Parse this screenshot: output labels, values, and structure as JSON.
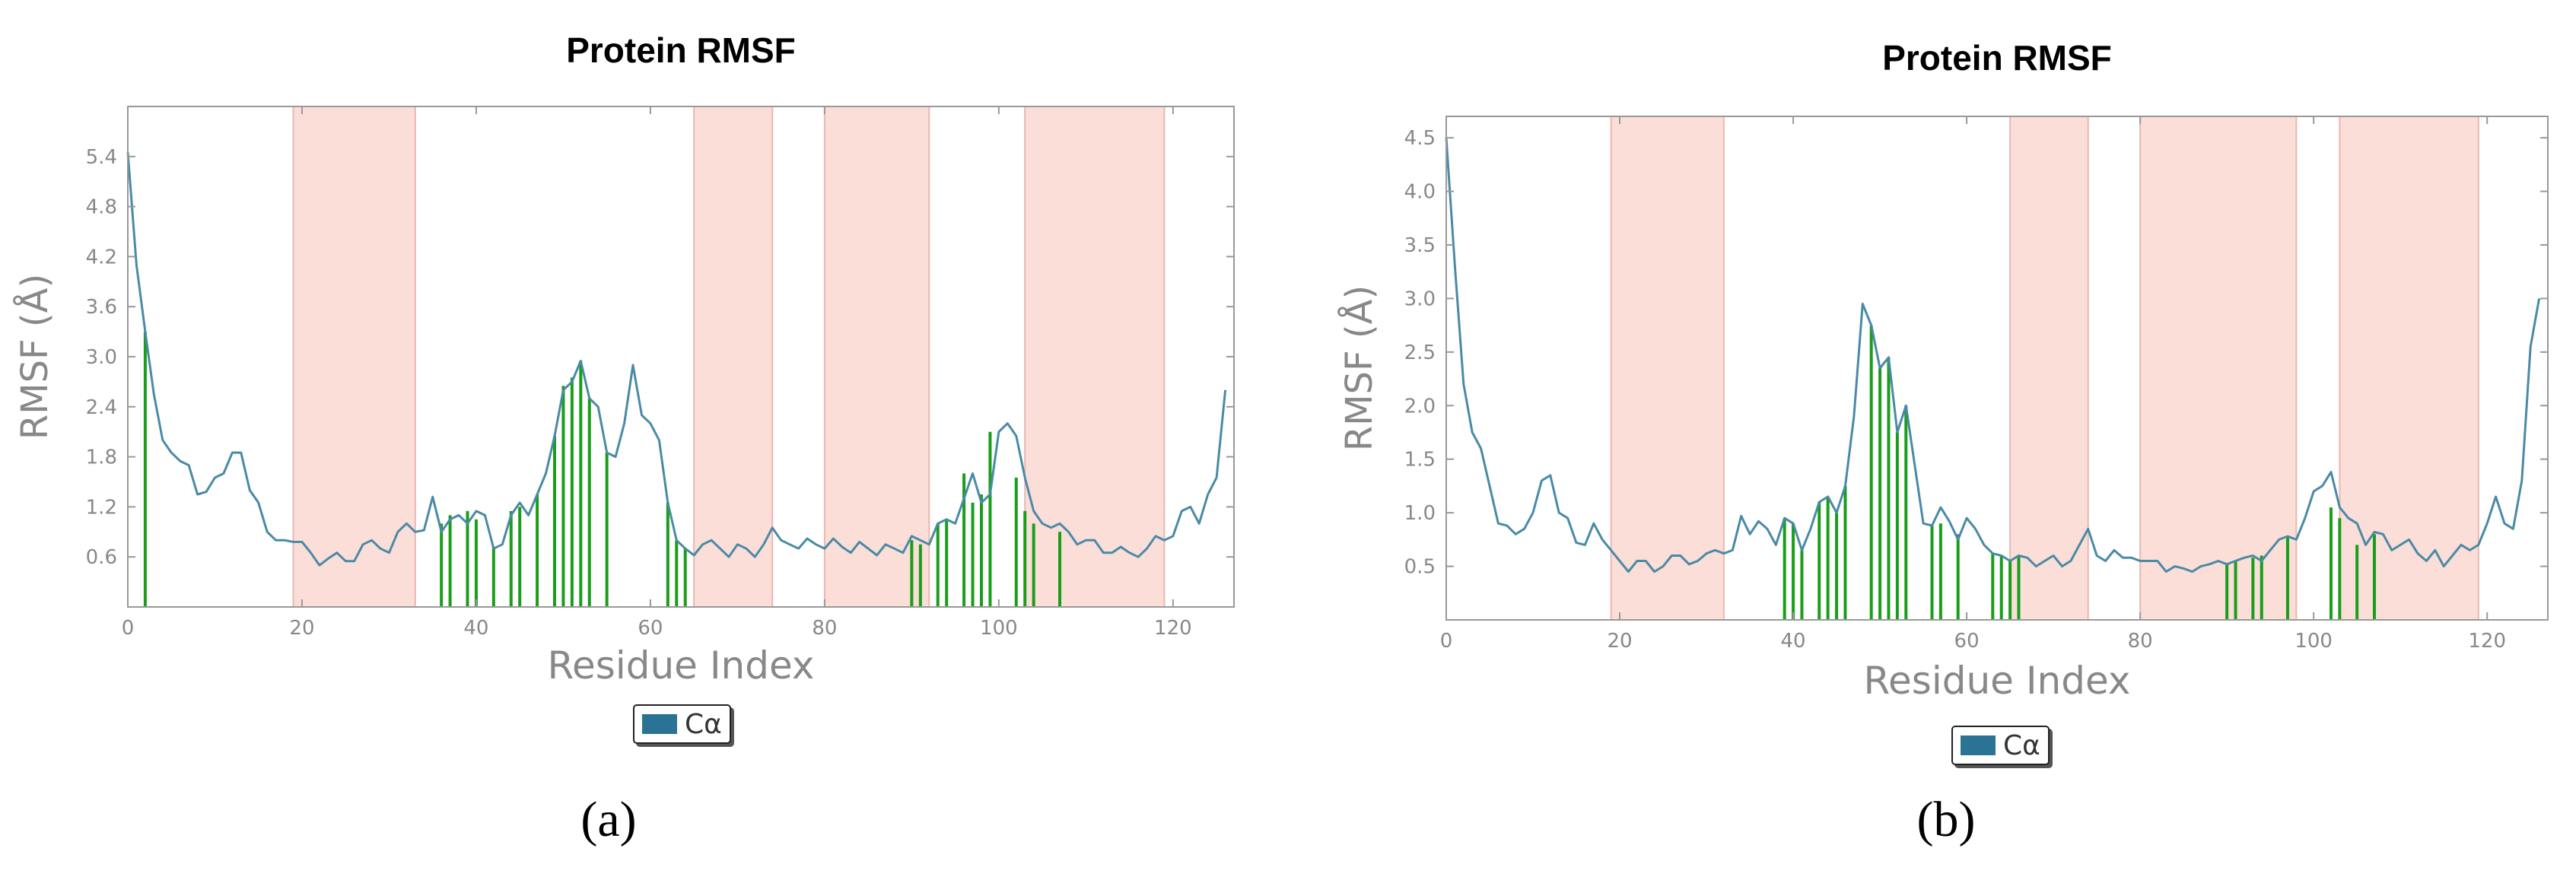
{
  "captions": [
    "(a)",
    "(b)"
  ],
  "chart_data": [
    {
      "type": "line",
      "title": "Protein RMSF",
      "xlabel": "Residue Index",
      "ylabel": "RMSF (Å)",
      "xlim": [
        0,
        127
      ],
      "ylim": [
        0,
        6.0
      ],
      "xticks": [
        0,
        20,
        40,
        60,
        80,
        100,
        120
      ],
      "yticks": [
        0.6,
        1.2,
        1.8,
        2.4,
        3.0,
        3.6,
        4.2,
        4.8,
        5.4
      ],
      "ytick_labels": [
        "0.6",
        "1.2",
        "1.8",
        "2.4",
        "3.0",
        "3.6",
        "4.2",
        "4.8",
        "5.4"
      ],
      "legend": {
        "label": "Cα",
        "color": "#2b7394",
        "placement": "below"
      },
      "colors": {
        "line": "#4a8aa6",
        "bars": "#1a9e1a",
        "shade": "#fbded8"
      },
      "shaded_regions": [
        [
          19,
          33
        ],
        [
          65,
          74
        ],
        [
          80,
          92
        ],
        [
          103,
          119
        ]
      ],
      "series": [
        {
          "name": "Cα",
          "x": [
            0,
            1,
            2,
            3,
            4,
            5,
            6,
            7,
            8,
            9,
            10,
            11,
            12,
            13,
            14,
            15,
            16,
            17,
            18,
            19,
            20,
            21,
            22,
            23,
            24,
            25,
            26,
            27,
            28,
            29,
            30,
            31,
            32,
            33,
            34,
            35,
            36,
            37,
            38,
            39,
            40,
            41,
            42,
            43,
            44,
            45,
            46,
            47,
            48,
            49,
            50,
            51,
            52,
            53,
            54,
            55,
            56,
            57,
            58,
            59,
            60,
            61,
            62,
            63,
            64,
            65,
            66,
            67,
            68,
            69,
            70,
            71,
            72,
            73,
            74,
            75,
            76,
            77,
            78,
            79,
            80,
            81,
            82,
            83,
            84,
            85,
            86,
            87,
            88,
            89,
            90,
            91,
            92,
            93,
            94,
            95,
            96,
            97,
            98,
            99,
            100,
            101,
            102,
            103,
            104,
            105,
            106,
            107,
            108,
            109,
            110,
            111,
            112,
            113,
            114,
            115,
            116,
            117,
            118,
            119,
            120,
            121,
            122,
            123,
            124,
            125,
            126
          ],
          "y": [
            5.45,
            4.1,
            3.3,
            2.55,
            2.0,
            1.85,
            1.75,
            1.7,
            1.35,
            1.38,
            1.55,
            1.6,
            1.85,
            1.85,
            1.4,
            1.25,
            0.9,
            0.8,
            0.8,
            0.78,
            0.78,
            0.65,
            0.5,
            0.58,
            0.65,
            0.55,
            0.55,
            0.75,
            0.8,
            0.7,
            0.65,
            0.9,
            1.0,
            0.9,
            0.92,
            1.32,
            0.9,
            1.05,
            1.1,
            1.0,
            1.15,
            1.1,
            0.7,
            0.75,
            1.1,
            1.25,
            1.1,
            1.35,
            1.6,
            2.05,
            2.6,
            2.7,
            2.95,
            2.5,
            2.4,
            1.85,
            1.8,
            2.2,
            2.9,
            2.3,
            2.2,
            2.0,
            1.25,
            0.8,
            0.7,
            0.62,
            0.75,
            0.8,
            0.7,
            0.6,
            0.75,
            0.7,
            0.6,
            0.75,
            0.95,
            0.8,
            0.75,
            0.7,
            0.82,
            0.75,
            0.7,
            0.82,
            0.72,
            0.65,
            0.78,
            0.7,
            0.62,
            0.75,
            0.7,
            0.65,
            0.85,
            0.8,
            0.75,
            1.0,
            1.05,
            1.0,
            1.3,
            1.6,
            1.25,
            1.35,
            2.1,
            2.2,
            2.05,
            1.55,
            1.15,
            1.0,
            0.95,
            1.0,
            0.9,
            0.75,
            0.8,
            0.8,
            0.65,
            0.65,
            0.72,
            0.65,
            0.6,
            0.7,
            0.85,
            0.8,
            0.85,
            1.15,
            1.2,
            1.0,
            1.35,
            1.55,
            2.6
          ]
        }
      ],
      "bars": [
        {
          "x": 2,
          "y": 3.3
        },
        {
          "x": 36,
          "y": 1.0
        },
        {
          "x": 37,
          "y": 1.1
        },
        {
          "x": 39,
          "y": 1.15
        },
        {
          "x": 40,
          "y": 1.05
        },
        {
          "x": 42,
          "y": 0.72
        },
        {
          "x": 44,
          "y": 1.15
        },
        {
          "x": 45,
          "y": 1.2
        },
        {
          "x": 47,
          "y": 1.35
        },
        {
          "x": 49,
          "y": 2.05
        },
        {
          "x": 50,
          "y": 2.65
        },
        {
          "x": 51,
          "y": 2.75
        },
        {
          "x": 52,
          "y": 2.95
        },
        {
          "x": 53,
          "y": 2.5
        },
        {
          "x": 55,
          "y": 1.85
        },
        {
          "x": 62,
          "y": 1.25
        },
        {
          "x": 63,
          "y": 0.8
        },
        {
          "x": 64,
          "y": 0.7
        },
        {
          "x": 90,
          "y": 0.8
        },
        {
          "x": 91,
          "y": 0.75
        },
        {
          "x": 93,
          "y": 1.0
        },
        {
          "x": 94,
          "y": 1.05
        },
        {
          "x": 96,
          "y": 1.6
        },
        {
          "x": 97,
          "y": 1.25
        },
        {
          "x": 98,
          "y": 1.35
        },
        {
          "x": 99,
          "y": 2.1
        },
        {
          "x": 102,
          "y": 1.55
        },
        {
          "x": 103,
          "y": 1.15
        },
        {
          "x": 104,
          "y": 1.0
        },
        {
          "x": 107,
          "y": 0.9
        }
      ]
    },
    {
      "type": "line",
      "title": "Protein RMSF",
      "xlabel": "Residue Index",
      "ylabel": "RMSF (Å)",
      "xlim": [
        0,
        127
      ],
      "ylim": [
        0,
        4.7
      ],
      "xticks": [
        0,
        20,
        40,
        60,
        80,
        100,
        120
      ],
      "yticks": [
        0.5,
        1.0,
        1.5,
        2.0,
        2.5,
        3.0,
        3.5,
        4.0,
        4.5
      ],
      "ytick_labels": [
        "0.5",
        "1.0",
        "1.5",
        "2.0",
        "2.5",
        "3.0",
        "3.5",
        "4.0",
        "4.5"
      ],
      "legend": {
        "label": "Cα",
        "color": "#2b7394",
        "placement": "below"
      },
      "colors": {
        "line": "#4a8aa6",
        "bars": "#1a9e1a",
        "shade": "#fbded8"
      },
      "shaded_regions": [
        [
          19,
          32
        ],
        [
          65,
          74
        ],
        [
          80,
          98
        ],
        [
          103,
          119
        ]
      ],
      "series": [
        {
          "name": "Cα",
          "x": [
            0,
            1,
            2,
            3,
            4,
            5,
            6,
            7,
            8,
            9,
            10,
            11,
            12,
            13,
            14,
            15,
            16,
            17,
            18,
            19,
            20,
            21,
            22,
            23,
            24,
            25,
            26,
            27,
            28,
            29,
            30,
            31,
            32,
            33,
            34,
            35,
            36,
            37,
            38,
            39,
            40,
            41,
            42,
            43,
            44,
            45,
            46,
            47,
            48,
            49,
            50,
            51,
            52,
            53,
            54,
            55,
            56,
            57,
            58,
            59,
            60,
            61,
            62,
            63,
            64,
            65,
            66,
            67,
            68,
            69,
            70,
            71,
            72,
            73,
            74,
            75,
            76,
            77,
            78,
            79,
            80,
            81,
            82,
            83,
            84,
            85,
            86,
            87,
            88,
            89,
            90,
            91,
            92,
            93,
            94,
            95,
            96,
            97,
            98,
            99,
            100,
            101,
            102,
            103,
            104,
            105,
            106,
            107,
            108,
            109,
            110,
            111,
            112,
            113,
            114,
            115,
            116,
            117,
            118,
            119,
            120,
            121,
            122,
            123,
            124,
            125,
            126
          ],
          "y": [
            4.5,
            3.3,
            2.2,
            1.75,
            1.6,
            1.25,
            0.9,
            0.88,
            0.8,
            0.85,
            1.0,
            1.3,
            1.35,
            1.0,
            0.95,
            0.72,
            0.7,
            0.9,
            0.75,
            0.65,
            0.55,
            0.45,
            0.55,
            0.55,
            0.45,
            0.5,
            0.6,
            0.6,
            0.52,
            0.55,
            0.62,
            0.65,
            0.62,
            0.65,
            0.97,
            0.8,
            0.92,
            0.85,
            0.7,
            0.95,
            0.9,
            0.65,
            0.85,
            1.1,
            1.15,
            1.0,
            1.25,
            1.9,
            2.95,
            2.75,
            2.35,
            2.45,
            1.75,
            2.0,
            1.45,
            0.9,
            0.88,
            1.05,
            0.92,
            0.75,
            0.95,
            0.85,
            0.7,
            0.62,
            0.6,
            0.55,
            0.6,
            0.58,
            0.5,
            0.55,
            0.6,
            0.5,
            0.55,
            0.7,
            0.85,
            0.6,
            0.55,
            0.65,
            0.58,
            0.58,
            0.55,
            0.55,
            0.55,
            0.45,
            0.5,
            0.48,
            0.45,
            0.5,
            0.52,
            0.55,
            0.52,
            0.55,
            0.58,
            0.6,
            0.55,
            0.65,
            0.75,
            0.78,
            0.75,
            0.95,
            1.2,
            1.25,
            1.38,
            1.05,
            0.95,
            0.9,
            0.7,
            0.82,
            0.8,
            0.65,
            0.7,
            0.75,
            0.62,
            0.55,
            0.65,
            0.5,
            0.6,
            0.7,
            0.65,
            0.7,
            0.9,
            1.15,
            0.9,
            0.85,
            1.3,
            2.55,
            3.0
          ]
        }
      ],
      "bars": [
        {
          "x": 39,
          "y": 0.95
        },
        {
          "x": 40,
          "y": 0.9
        },
        {
          "x": 41,
          "y": 0.65
        },
        {
          "x": 43,
          "y": 1.1
        },
        {
          "x": 44,
          "y": 1.15
        },
        {
          "x": 45,
          "y": 1.0
        },
        {
          "x": 46,
          "y": 1.25
        },
        {
          "x": 49,
          "y": 2.75
        },
        {
          "x": 50,
          "y": 2.35
        },
        {
          "x": 51,
          "y": 2.45
        },
        {
          "x": 52,
          "y": 1.75
        },
        {
          "x": 53,
          "y": 2.0
        },
        {
          "x": 56,
          "y": 0.88
        },
        {
          "x": 57,
          "y": 0.9
        },
        {
          "x": 59,
          "y": 0.8
        },
        {
          "x": 63,
          "y": 0.62
        },
        {
          "x": 64,
          "y": 0.6
        },
        {
          "x": 65,
          "y": 0.55
        },
        {
          "x": 66,
          "y": 0.6
        },
        {
          "x": 90,
          "y": 0.52
        },
        {
          "x": 91,
          "y": 0.55
        },
        {
          "x": 93,
          "y": 0.58
        },
        {
          "x": 94,
          "y": 0.6
        },
        {
          "x": 97,
          "y": 0.78
        },
        {
          "x": 102,
          "y": 1.05
        },
        {
          "x": 103,
          "y": 0.95
        },
        {
          "x": 105,
          "y": 0.7
        },
        {
          "x": 107,
          "y": 0.8
        }
      ]
    }
  ]
}
